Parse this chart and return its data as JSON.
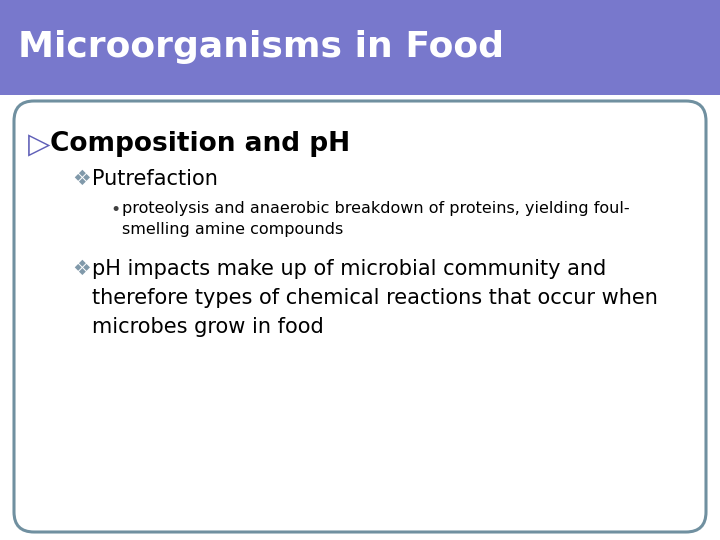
{
  "title": "Microorganisms in Food",
  "title_bg_color": "#7878CC",
  "title_text_color": "#FFFFFF",
  "slide_bg_color": "#FFFFFF",
  "border_color": "#7090A0",
  "header_line_color": "#FFFFFF",
  "level1_bullet": "▷",
  "level1_text": "Composition and pH",
  "level1_color": "#000000",
  "level1_fontsize": 19,
  "level2_bullet": "❖",
  "level2_color": "#8099AA",
  "level2_fontsize": 15,
  "level3_bullet": "•",
  "level3_color": "#404040",
  "level3_fontsize": 11.5,
  "item2_text": "Putrefaction",
  "item3_text": "proteolysis and anaerobic breakdown of proteins, yielding foul-\nsmelling amine compounds",
  "item4_text": "pH impacts make up of microbial community and\ntherefore types of chemical reactions that occur when\nmicrobes grow in food"
}
